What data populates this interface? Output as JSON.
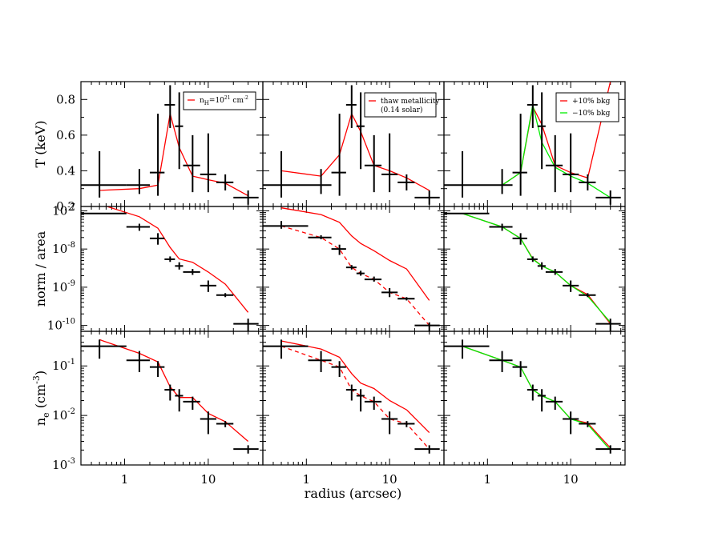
{
  "figure": {
    "xlabel": "radius (arcsec)",
    "rows": [
      {
        "key": "T",
        "scale": "linear",
        "ylim": [
          0.2,
          0.9
        ],
        "ylabel_main": "T (keV)",
        "ylabel_sup": "",
        "yticks": [
          {
            "v": 0.2,
            "label": "0.2",
            "sup": ""
          },
          {
            "v": 0.4,
            "label": "0.4",
            "sup": ""
          },
          {
            "v": 0.6,
            "label": "0.6",
            "sup": ""
          },
          {
            "v": 0.8,
            "label": "0.8",
            "sup": ""
          }
        ]
      },
      {
        "key": "norm",
        "scale": "log",
        "ylim": [
          7e-11,
          1.3e-07
        ],
        "ylabel_main": "norm / area",
        "ylabel_sup": "",
        "yticks": [
          {
            "v": 1e-10,
            "label": "10",
            "sup": "-10"
          },
          {
            "v": 1e-09,
            "label": "10",
            "sup": "-9"
          },
          {
            "v": 1e-08,
            "label": "10",
            "sup": "-8"
          },
          {
            "v": 1e-07,
            "label": "10",
            "sup": "-7"
          }
        ]
      },
      {
        "key": "ne",
        "scale": "log",
        "ylim": [
          0.001,
          0.5
        ],
        "ylabel_main": "n",
        "ylabel_sub": "e",
        "ylabel_paren": " (cm",
        "ylabel_sup": "-3",
        "ylabel_close": ")",
        "yticks": [
          {
            "v": 0.001,
            "label": "10",
            "sup": "-3"
          },
          {
            "v": 0.01,
            "label": "10",
            "sup": "-2"
          },
          {
            "v": 0.1,
            "label": "10",
            "sup": "-1"
          }
        ]
      }
    ],
    "xlim": [
      0.3,
      45
    ],
    "xticks": [
      {
        "v": 1,
        "label": "1"
      },
      {
        "v": 10,
        "label": "10"
      }
    ],
    "legends": [
      {
        "col": 0,
        "items": [
          {
            "color": "#ff0000",
            "text": "n",
            "sub": "H",
            "mid": "=10",
            "sup": "21",
            "tail": " cm",
            "sup2": "-2"
          }
        ]
      },
      {
        "col": 1,
        "items": [
          {
            "color": "#ff0000",
            "text": "thaw metallicity",
            "line2": "(0.14 solar)"
          }
        ]
      },
      {
        "col": 2,
        "items": [
          {
            "color": "#ff0000",
            "text": "+10% bkg"
          },
          {
            "color": "#00ee00",
            "text": "−10% bkg"
          }
        ]
      }
    ]
  },
  "chart_data": {
    "type": "scatter",
    "x_bins": [
      {
        "x": 0.5,
        "xlo": 0.3,
        "xhi": 1.05
      },
      {
        "x": 1.5,
        "xlo": 1.05,
        "xhi": 2.0
      },
      {
        "x": 2.5,
        "xlo": 2.0,
        "xhi": 3.0
      },
      {
        "x": 3.5,
        "xlo": 3.0,
        "xhi": 4.0
      },
      {
        "x": 4.5,
        "xlo": 4.0,
        "xhi": 5.0
      },
      {
        "x": 6.5,
        "xlo": 5.0,
        "xhi": 8.0
      },
      {
        "x": 10,
        "xlo": 8.0,
        "xhi": 12.5
      },
      {
        "x": 16,
        "xlo": 12.5,
        "xhi": 20
      },
      {
        "x": 30,
        "xlo": 20,
        "xhi": 40
      }
    ],
    "data": {
      "T": {
        "y": [
          0.32,
          0.32,
          0.39,
          0.77,
          0.65,
          0.43,
          0.38,
          0.335,
          0.25
        ],
        "ylo": [
          0.25,
          0.27,
          0.26,
          0.64,
          0.41,
          0.28,
          0.28,
          0.29,
          0.21
        ],
        "yhi": [
          0.51,
          0.41,
          0.72,
          0.88,
          0.84,
          0.6,
          0.61,
          0.38,
          0.29
        ]
      },
      "norm": [
        {
          "y": [
            8.5e-08,
            3.8e-08,
            1.9e-08,
            5.4e-09,
            3.6e-09,
            2.5e-09,
            1.1e-09,
            6.2e-10,
            1.1e-10
          ],
          "ylo": [
            8.5e-08,
            3e-08,
            1.3e-08,
            4.6e-09,
            2.9e-09,
            2.1e-09,
            7.5e-10,
            5.5e-10,
            7e-11
          ],
          "yhi": [
            8.5e-08,
            4.6e-08,
            2.6e-08,
            6.4e-09,
            4.5e-09,
            3e-09,
            1.5e-09,
            7e-10,
            1.5e-10
          ]
        },
        {
          "y": [
            4e-08,
            2e-08,
            1e-08,
            3.3e-09,
            2.3e-09,
            1.6e-09,
            7.3e-10,
            5e-10,
            1e-10
          ],
          "ylo": [
            3.4e-08,
            1.8e-08,
            7e-09,
            2.9e-09,
            2e-09,
            1.4e-09,
            5.5e-10,
            4.5e-10,
            7e-11
          ],
          "yhi": [
            5.4e-08,
            2.3e-08,
            1.3e-08,
            3.8e-09,
            2.7e-09,
            1.9e-09,
            9.5e-10,
            5.5e-10,
            1.2e-10
          ]
        },
        {
          "y": [
            8.5e-08,
            3.8e-08,
            1.9e-08,
            5.4e-09,
            3.6e-09,
            2.5e-09,
            1.1e-09,
            6.2e-10,
            1.1e-10
          ],
          "ylo": [
            8.5e-08,
            3e-08,
            1.3e-08,
            4.6e-09,
            2.9e-09,
            2.1e-09,
            7.5e-10,
            5.5e-10,
            7e-11
          ],
          "yhi": [
            8.5e-08,
            4.6e-08,
            2.6e-08,
            6.4e-09,
            4.5e-09,
            3e-09,
            1.5e-09,
            7e-10,
            1.5e-10
          ]
        }
      ],
      "ne": {
        "y": [
          0.25,
          0.13,
          0.095,
          0.033,
          0.025,
          0.019,
          0.0085,
          0.0068,
          0.0021
        ],
        "ylo": [
          0.14,
          0.075,
          0.06,
          0.02,
          0.012,
          0.013,
          0.0042,
          0.0058,
          0.0017
        ],
        "yhi": [
          0.34,
          0.2,
          0.125,
          0.042,
          0.034,
          0.024,
          0.012,
          0.0077,
          0.0025
        ]
      }
    },
    "model_lines": [
      {
        "row": "T",
        "col": 0,
        "color": "#ff0000",
        "dash": "",
        "x": [
          0.5,
          1.5,
          2.5,
          3.5,
          4.5,
          6.5,
          10,
          16,
          30
        ],
        "y": [
          0.29,
          0.3,
          0.32,
          0.72,
          0.53,
          0.37,
          0.35,
          0.33,
          0.26
        ]
      },
      {
        "row": "T",
        "col": 1,
        "color": "#ff0000",
        "dash": "",
        "x": [
          0.5,
          1.5,
          2.5,
          3.5,
          4.5,
          6.5,
          10,
          16,
          30
        ],
        "y": [
          0.4,
          0.37,
          0.49,
          0.72,
          0.62,
          0.43,
          0.4,
          0.36,
          0.29
        ]
      },
      {
        "row": "T",
        "col": 2,
        "color": "#ff0000",
        "dash": "",
        "x": [
          0.5,
          1.5,
          2.5,
          3.5,
          4.5,
          6.5,
          10,
          16,
          30
        ],
        "y": [
          0.32,
          0.32,
          0.39,
          0.76,
          0.66,
          0.43,
          0.39,
          0.36,
          0.9
        ]
      },
      {
        "row": "T",
        "col": 2,
        "color": "#00ee00",
        "dash": "",
        "x": [
          0.5,
          1.5,
          2.5,
          3.5,
          4.5,
          6.5,
          10,
          16,
          30
        ],
        "y": [
          0.32,
          0.32,
          0.39,
          0.77,
          0.56,
          0.42,
          0.37,
          0.33,
          0.25
        ]
      },
      {
        "row": "norm",
        "col": 0,
        "color": "#ff0000",
        "dash": "",
        "x": [
          0.5,
          1.5,
          2.5,
          3.5,
          4.5,
          6.5,
          10,
          16,
          30
        ],
        "y": [
          1.5e-07,
          7e-08,
          3.5e-08,
          1.1e-08,
          5.5e-09,
          4.5e-09,
          2.5e-09,
          1.2e-09,
          2.2e-10
        ]
      },
      {
        "row": "norm",
        "col": 1,
        "color": "#ff0000",
        "dash": "",
        "x": [
          0.5,
          1.5,
          2.5,
          3.5,
          4.5,
          6.5,
          10,
          16,
          30
        ],
        "y": [
          1.2e-07,
          8e-08,
          5e-08,
          2.2e-08,
          1.4e-08,
          9e-09,
          5e-09,
          3e-09,
          4.5e-10
        ]
      },
      {
        "row": "norm",
        "col": 1,
        "color": "#ff0000",
        "dash": "5,4",
        "x": [
          0.5,
          1.5,
          2.5,
          3.5,
          4.5,
          6.5,
          10,
          16,
          30
        ],
        "y": [
          4e-08,
          2e-08,
          1e-08,
          3.3e-09,
          2.3e-09,
          1.6e-09,
          7.3e-10,
          5e-10,
          1e-10
        ]
      },
      {
        "row": "norm",
        "col": 2,
        "color": "#ff0000",
        "dash": "",
        "x": [
          0.5,
          1.5,
          2.5,
          3.5,
          4.5,
          6.5,
          10,
          16,
          30
        ],
        "y": [
          8.5e-08,
          3.8e-08,
          1.9e-08,
          5.6e-09,
          3.6e-09,
          2.5e-09,
          1.1e-09,
          6.4e-10,
          1.1e-10
        ]
      },
      {
        "row": "norm",
        "col": 2,
        "color": "#00ee00",
        "dash": "",
        "x": [
          0.5,
          1.5,
          2.5,
          3.5,
          4.5,
          6.5,
          10,
          16,
          30
        ],
        "y": [
          8.5e-08,
          3.8e-08,
          1.9e-08,
          5.4e-09,
          3.6e-09,
          2.5e-09,
          1.1e-09,
          5.8e-10,
          1.2e-10
        ]
      },
      {
        "row": "ne",
        "col": 0,
        "color": "#ff0000",
        "dash": "",
        "x": [
          0.5,
          1.5,
          2.5,
          3.5,
          4.5,
          6.5,
          10,
          16,
          30
        ],
        "y": [
          0.34,
          0.18,
          0.12,
          0.038,
          0.023,
          0.023,
          0.011,
          0.0075,
          0.003
        ]
      },
      {
        "row": "ne",
        "col": 1,
        "color": "#ff0000",
        "dash": "",
        "x": [
          0.5,
          1.5,
          2.5,
          3.5,
          4.5,
          6.5,
          10,
          16,
          30
        ],
        "y": [
          0.32,
          0.22,
          0.15,
          0.07,
          0.045,
          0.035,
          0.02,
          0.013,
          0.0045
        ]
      },
      {
        "row": "ne",
        "col": 1,
        "color": "#ff0000",
        "dash": "5,4",
        "x": [
          0.5,
          1.5,
          2.5,
          3.5,
          4.5,
          6.5,
          10,
          16,
          30
        ],
        "y": [
          0.25,
          0.13,
          0.095,
          0.033,
          0.025,
          0.019,
          0.0085,
          0.0068,
          0.0021
        ]
      },
      {
        "row": "ne",
        "col": 2,
        "color": "#ff0000",
        "dash": "",
        "x": [
          0.5,
          1.5,
          2.5,
          3.5,
          4.5,
          6.5,
          10,
          16,
          30
        ],
        "y": [
          0.25,
          0.13,
          0.095,
          0.033,
          0.025,
          0.019,
          0.0085,
          0.007,
          0.0022
        ]
      },
      {
        "row": "ne",
        "col": 2,
        "color": "#00ee00",
        "dash": "",
        "x": [
          0.5,
          1.5,
          2.5,
          3.5,
          4.5,
          6.5,
          10,
          16,
          30
        ],
        "y": [
          0.25,
          0.13,
          0.095,
          0.033,
          0.025,
          0.019,
          0.0085,
          0.0066,
          0.002
        ]
      }
    ]
  }
}
